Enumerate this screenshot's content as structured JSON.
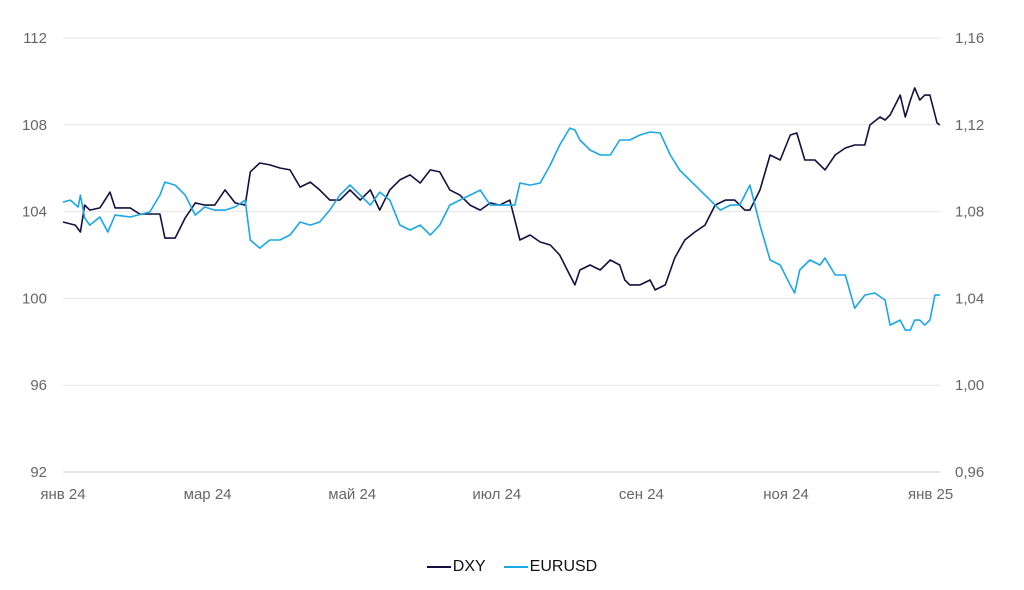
{
  "chart_data": {
    "type": "line",
    "title": "",
    "x_unit": "months since янв 24",
    "x_ticks": [
      {
        "value": 0,
        "label": "янв 24"
      },
      {
        "value": 2,
        "label": "мар 24"
      },
      {
        "value": 4,
        "label": "май 24"
      },
      {
        "value": 6,
        "label": "июл 24"
      },
      {
        "value": 8,
        "label": "сен 24"
      },
      {
        "value": 10,
        "label": "ноя 24"
      },
      {
        "value": 12,
        "label": "янв 25"
      }
    ],
    "xlim": [
      0,
      12.13
    ],
    "y_left": {
      "ticks": [
        "92",
        "96",
        "100",
        "104",
        "108",
        "112"
      ],
      "values": [
        92,
        96,
        100,
        104,
        108,
        112
      ],
      "ylim": [
        92,
        112
      ]
    },
    "y_right": {
      "ticks": [
        "0,96",
        "1,00",
        "1,04",
        "1,08",
        "1,12",
        "1,16"
      ],
      "values": [
        0.96,
        1.0,
        1.04,
        1.08,
        1.12,
        1.16
      ],
      "ylim": [
        0.96,
        1.16
      ]
    },
    "grid": true,
    "legend_position": "bottom",
    "series": [
      {
        "name": "DXY",
        "axis": "left",
        "color": "#14103f",
        "points": [
          [
            0,
            103.52
          ],
          [
            0.17,
            103.38
          ],
          [
            0.24,
            103.06
          ],
          [
            0.3,
            104.3
          ],
          [
            0.37,
            104.07
          ],
          [
            0.51,
            104.17
          ],
          [
            0.65,
            104.9
          ],
          [
            0.72,
            104.17
          ],
          [
            0.93,
            104.17
          ],
          [
            1.06,
            103.89
          ],
          [
            1.2,
            103.89
          ],
          [
            1.34,
            103.89
          ],
          [
            1.41,
            102.78
          ],
          [
            1.55,
            102.78
          ],
          [
            1.69,
            103.71
          ],
          [
            1.83,
            104.4
          ],
          [
            1.96,
            104.3
          ],
          [
            2.1,
            104.3
          ],
          [
            2.24,
            105.0
          ],
          [
            2.38,
            104.4
          ],
          [
            2.52,
            104.3
          ],
          [
            2.59,
            105.83
          ],
          [
            2.72,
            106.24
          ],
          [
            2.86,
            106.15
          ],
          [
            3.0,
            106.01
          ],
          [
            3.14,
            105.92
          ],
          [
            3.28,
            105.13
          ],
          [
            3.42,
            105.36
          ],
          [
            3.55,
            105.0
          ],
          [
            3.69,
            104.53
          ],
          [
            3.83,
            104.53
          ],
          [
            3.97,
            105.0
          ],
          [
            4.11,
            104.53
          ],
          [
            4.25,
            105.0
          ],
          [
            4.38,
            104.07
          ],
          [
            4.52,
            105.0
          ],
          [
            4.66,
            105.46
          ],
          [
            4.8,
            105.69
          ],
          [
            4.94,
            105.32
          ],
          [
            5.08,
            105.92
          ],
          [
            5.21,
            105.83
          ],
          [
            5.35,
            105.0
          ],
          [
            5.49,
            104.76
          ],
          [
            5.63,
            104.3
          ],
          [
            5.77,
            104.07
          ],
          [
            5.91,
            104.4
          ],
          [
            6.04,
            104.3
          ],
          [
            6.18,
            104.53
          ],
          [
            6.25,
            103.61
          ],
          [
            6.32,
            102.69
          ],
          [
            6.46,
            102.92
          ],
          [
            6.6,
            102.6
          ],
          [
            6.74,
            102.46
          ],
          [
            6.87,
            102.0
          ],
          [
            7.01,
            101.08
          ],
          [
            7.08,
            100.62
          ],
          [
            7.15,
            101.31
          ],
          [
            7.29,
            101.54
          ],
          [
            7.43,
            101.31
          ],
          [
            7.57,
            101.77
          ],
          [
            7.7,
            101.54
          ],
          [
            7.77,
            100.85
          ],
          [
            7.84,
            100.62
          ],
          [
            7.98,
            100.62
          ],
          [
            8.12,
            100.85
          ],
          [
            8.19,
            100.39
          ],
          [
            8.33,
            100.62
          ],
          [
            8.46,
            101.86
          ],
          [
            8.6,
            102.69
          ],
          [
            8.74,
            103.06
          ],
          [
            8.88,
            103.38
          ],
          [
            9.02,
            104.3
          ],
          [
            9.16,
            104.53
          ],
          [
            9.29,
            104.53
          ],
          [
            9.43,
            104.07
          ],
          [
            9.5,
            104.07
          ],
          [
            9.64,
            105.0
          ],
          [
            9.78,
            106.61
          ],
          [
            9.92,
            106.38
          ],
          [
            10.06,
            107.53
          ],
          [
            10.15,
            107.62
          ],
          [
            10.26,
            106.38
          ],
          [
            10.4,
            106.38
          ],
          [
            10.54,
            105.92
          ],
          [
            10.68,
            106.61
          ],
          [
            10.82,
            106.93
          ],
          [
            10.95,
            107.07
          ],
          [
            11.09,
            107.07
          ],
          [
            11.16,
            107.99
          ],
          [
            11.3,
            108.36
          ],
          [
            11.37,
            108.22
          ],
          [
            11.44,
            108.45
          ],
          [
            11.58,
            109.37
          ],
          [
            11.65,
            108.36
          ],
          [
            11.72,
            109.14
          ],
          [
            11.78,
            109.7
          ],
          [
            11.85,
            109.14
          ],
          [
            11.92,
            109.37
          ],
          [
            11.99,
            109.37
          ],
          [
            12.09,
            108.08
          ],
          [
            12.13,
            107.99
          ]
        ]
      },
      {
        "name": "EURUSD",
        "axis": "right",
        "color": "#1aa7e6",
        "points": [
          [
            0,
            1.0844
          ],
          [
            0.1,
            1.0853
          ],
          [
            0.21,
            1.0821
          ],
          [
            0.24,
            1.0876
          ],
          [
            0.3,
            1.077
          ],
          [
            0.37,
            1.0738
          ],
          [
            0.51,
            1.0775
          ],
          [
            0.62,
            1.0706
          ],
          [
            0.72,
            1.0784
          ],
          [
            0.93,
            1.0775
          ],
          [
            1.2,
            1.0798
          ],
          [
            1.34,
            1.0876
          ],
          [
            1.41,
            1.0936
          ],
          [
            1.55,
            1.0922
          ],
          [
            1.69,
            1.0876
          ],
          [
            1.83,
            1.0784
          ],
          [
            1.96,
            1.0821
          ],
          [
            2.1,
            1.0807
          ],
          [
            2.24,
            1.0807
          ],
          [
            2.38,
            1.0821
          ],
          [
            2.52,
            1.0853
          ],
          [
            2.59,
            1.0669
          ],
          [
            2.72,
            1.0632
          ],
          [
            2.86,
            1.0669
          ],
          [
            3.0,
            1.0669
          ],
          [
            3.14,
            1.0692
          ],
          [
            3.28,
            1.0752
          ],
          [
            3.42,
            1.0738
          ],
          [
            3.55,
            1.0752
          ],
          [
            3.69,
            1.0807
          ],
          [
            3.83,
            1.0876
          ],
          [
            3.97,
            1.0922
          ],
          [
            4.11,
            1.0876
          ],
          [
            4.25,
            1.083
          ],
          [
            4.38,
            1.089
          ],
          [
            4.52,
            1.0853
          ],
          [
            4.66,
            1.0738
          ],
          [
            4.8,
            1.0715
          ],
          [
            4.94,
            1.0738
          ],
          [
            5.08,
            1.0692
          ],
          [
            5.21,
            1.0738
          ],
          [
            5.35,
            1.083
          ],
          [
            5.49,
            1.0853
          ],
          [
            5.63,
            1.0876
          ],
          [
            5.77,
            1.0899
          ],
          [
            5.91,
            1.083
          ],
          [
            6.04,
            1.083
          ],
          [
            6.18,
            1.083
          ],
          [
            6.25,
            1.083
          ],
          [
            6.32,
            1.0932
          ],
          [
            6.46,
            1.0922
          ],
          [
            6.6,
            1.0932
          ],
          [
            6.74,
            1.1015
          ],
          [
            6.87,
            1.1107
          ],
          [
            7.01,
            1.1185
          ],
          [
            7.08,
            1.1176
          ],
          [
            7.15,
            1.113
          ],
          [
            7.29,
            1.1084
          ],
          [
            7.43,
            1.1061
          ],
          [
            7.57,
            1.1061
          ],
          [
            7.7,
            1.113
          ],
          [
            7.84,
            1.113
          ],
          [
            7.98,
            1.1153
          ],
          [
            8.12,
            1.1167
          ],
          [
            8.26,
            1.1162
          ],
          [
            8.4,
            1.1061
          ],
          [
            8.53,
            1.0991
          ],
          [
            8.67,
            1.0945
          ],
          [
            8.81,
            1.0899
          ],
          [
            8.95,
            1.0853
          ],
          [
            9.09,
            1.0807
          ],
          [
            9.23,
            1.083
          ],
          [
            9.36,
            1.083
          ],
          [
            9.5,
            1.0922
          ],
          [
            9.64,
            1.0738
          ],
          [
            9.78,
            1.0577
          ],
          [
            9.92,
            1.0554
          ],
          [
            10.06,
            1.0461
          ],
          [
            10.12,
            1.0425
          ],
          [
            10.19,
            1.0531
          ],
          [
            10.33,
            1.0577
          ],
          [
            10.47,
            1.0554
          ],
          [
            10.54,
            1.0586
          ],
          [
            10.68,
            1.0508
          ],
          [
            10.82,
            1.0508
          ],
          [
            10.95,
            1.0355
          ],
          [
            11.09,
            1.0415
          ],
          [
            11.23,
            1.0425
          ],
          [
            11.37,
            1.0392
          ],
          [
            11.44,
            1.0277
          ],
          [
            11.58,
            1.03
          ],
          [
            11.65,
            1.0254
          ],
          [
            11.72,
            1.0254
          ],
          [
            11.78,
            1.03
          ],
          [
            11.85,
            1.03
          ],
          [
            11.92,
            1.0277
          ],
          [
            11.99,
            1.03
          ],
          [
            12.06,
            1.0415
          ],
          [
            12.13,
            1.0415
          ]
        ]
      }
    ]
  },
  "legend": {
    "items": [
      {
        "label": "DXY",
        "color": "#14103f"
      },
      {
        "label": "EURUSD",
        "color": "#1aa7e6"
      }
    ]
  }
}
